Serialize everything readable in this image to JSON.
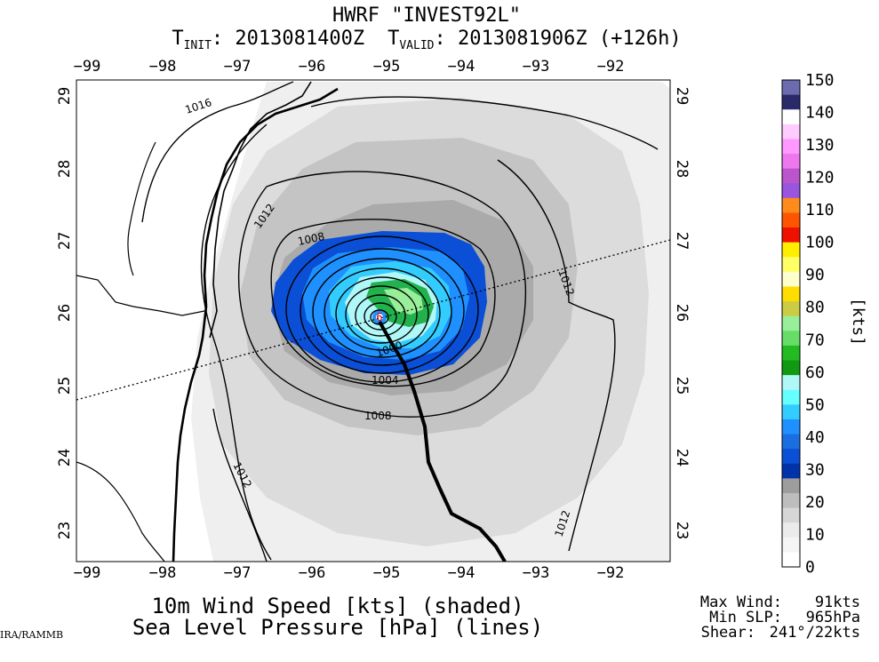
{
  "title": {
    "line1": "HWRF \"INVEST92L\"",
    "init_prefix": "T",
    "init_sub": "INIT",
    "init_value": ": 2013081400Z",
    "valid_prefix": "T",
    "valid_sub": "VALID",
    "valid_value": ": 2013081906Z (+126h)"
  },
  "map": {
    "lon_ticks": [
      "−99",
      "−98",
      "−97",
      "−96",
      "−95",
      "−94",
      "−93",
      "−92"
    ],
    "lat_ticks": [
      "29",
      "28",
      "27",
      "26",
      "25",
      "24",
      "23"
    ],
    "lon_range": [
      -99.2,
      -91.25
    ],
    "lat_range": [
      22.55,
      29.2
    ],
    "storm_center": {
      "lon": -94.95,
      "lat": 25.9,
      "label": "6"
    },
    "contour_labels": [
      "1016",
      "1012",
      "1008",
      "1004",
      "1000",
      "1012",
      "1012",
      "1012",
      "1008"
    ],
    "colors": {
      "land_gray_light": "#e8e8e8",
      "gray_mid": "#cfcfcf",
      "gray_dark": "#b3b3b3",
      "blue_40": "#0a4fd6",
      "blue_50": "#1e90ff",
      "cyan_60": "#33ccff",
      "aqua_65": "#b0f7f7",
      "green_70": "#23b14d",
      "green_80": "#99ee99"
    }
  },
  "colorbar": {
    "unit_label": "[kts]",
    "ticks": [
      "150",
      "140",
      "130",
      "120",
      "110",
      "100",
      "90",
      "80",
      "70",
      "60",
      "50",
      "40",
      "30",
      "20",
      "10",
      "0"
    ],
    "colors": [
      "#6b6bb0",
      "#2a2a6a",
      "#ffffff",
      "#ffccff",
      "#ff99ff",
      "#ee77ee",
      "#bb55cc",
      "#9955dd",
      "#ff8c1a",
      "#ff5500",
      "#ee1100",
      "#ffee00",
      "#ffff66",
      "#ffffcc",
      "#ffdd00",
      "#cccc44",
      "#99ee99",
      "#66dd66",
      "#22bb22",
      "#119911",
      "#b0f7f7",
      "#66ffff",
      "#33ccff",
      "#1e90ff",
      "#1a6fe0",
      "#0a4fd6",
      "#0033aa",
      "#9d9d9d",
      "#bdbdbd",
      "#d6d6d6",
      "#ebebeb",
      "#f5f5f5",
      "#ffffff"
    ]
  },
  "caption": {
    "line1": "10m Wind Speed [kts] (shaded)",
    "line2": "Sea Level Pressure [hPa] (lines)"
  },
  "stats": {
    "max_wind_label": "Max Wind:",
    "max_wind_value": "91kts",
    "min_slp_label": "Min SLP:",
    "min_slp_value": "965hPa",
    "shear_label": "Shear:",
    "shear_value": "241°/22kts"
  },
  "credit": "IRA/RAMMB"
}
